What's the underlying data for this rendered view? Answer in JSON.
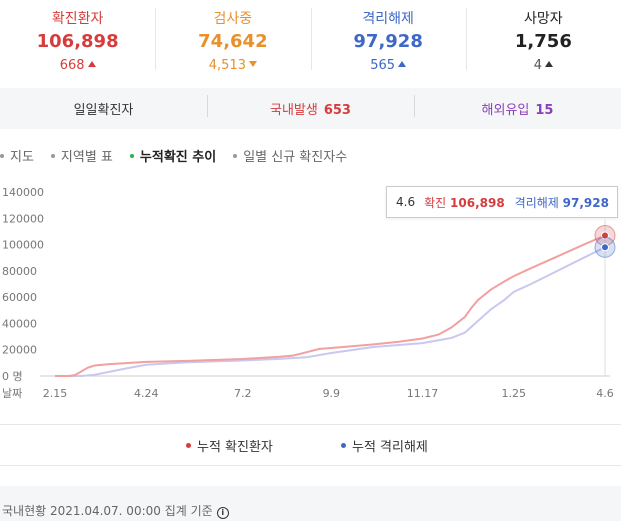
{
  "stats": [
    {
      "label": "확진환자",
      "value": "106,898",
      "change": "668",
      "direction": "up",
      "label_color": "#d73c3c",
      "value_color": "#d73c3c",
      "change_color": "#d73c3c"
    },
    {
      "label": "검사중",
      "value": "74,642",
      "change": "4,513",
      "direction": "down",
      "label_color": "#e8902a",
      "value_color": "#e8902a",
      "change_color": "#e8902a"
    },
    {
      "label": "격리해제",
      "value": "97,928",
      "change": "565",
      "direction": "up",
      "label_color": "#3e67c8",
      "value_color": "#3e67c8",
      "change_color": "#3e67c8"
    },
    {
      "label": "사망자",
      "value": "1,756",
      "change": "4",
      "direction": "up",
      "label_color": "#222222",
      "value_color": "#222222",
      "change_color": "#555555"
    }
  ],
  "daily": {
    "total_label": "일일확진자",
    "domestic_label": "국내발생",
    "domestic_value": "653",
    "overseas_label": "해외유입",
    "overseas_value": "15",
    "domestic_color": "#d73c3c",
    "overseas_color": "#8a3fb8"
  },
  "tabs": [
    "지도",
    "지역별 표",
    "누적확진 추이",
    "일별 신규 확진자수"
  ],
  "active_tab": 2,
  "tooltip": {
    "date": "4.6",
    "confirmed_label": "확진",
    "confirmed_value": "106,898",
    "released_label": "격리해제",
    "released_value": "97,928"
  },
  "legend": {
    "confirmed": "누적 확진환자",
    "released": "누적 격리해제"
  },
  "footer": {
    "text": "국내현황 2021.04.07. 00:00 집계 기준",
    "info_glyph": "i"
  },
  "chart_data": {
    "type": "line",
    "ylim": [
      0,
      140000
    ],
    "y_ticks": [
      {
        "value": 0,
        "label": "0 명"
      },
      {
        "value": 20000,
        "label": "20000"
      },
      {
        "value": 40000,
        "label": "40000"
      },
      {
        "value": 60000,
        "label": "60000"
      },
      {
        "value": 80000,
        "label": "80000"
      },
      {
        "value": 100000,
        "label": "100000"
      },
      {
        "value": 120000,
        "label": "120000"
      },
      {
        "value": 140000,
        "label": "140000"
      }
    ],
    "x_axis_label": "날짜",
    "x_ticks": [
      {
        "day": 0,
        "label": "2.15"
      },
      {
        "day": 69,
        "label": "4.24"
      },
      {
        "day": 142,
        "label": "7.2"
      },
      {
        "day": 209,
        "label": "9.9"
      },
      {
        "day": 278,
        "label": "11.17"
      },
      {
        "day": 347,
        "label": "1.25"
      },
      {
        "day": 416,
        "label": "4.6"
      }
    ],
    "xlim": [
      0,
      416
    ],
    "series": [
      {
        "name": "누적 확진환자",
        "color": "#f2a0a0",
        "marker_color": "#d73c3c",
        "points": [
          [
            0,
            28
          ],
          [
            10,
            30
          ],
          [
            15,
            700
          ],
          [
            20,
            3500
          ],
          [
            25,
            6500
          ],
          [
            30,
            8000
          ],
          [
            40,
            9000
          ],
          [
            55,
            9900
          ],
          [
            69,
            10700
          ],
          [
            100,
            11500
          ],
          [
            142,
            12900
          ],
          [
            170,
            14600
          ],
          [
            180,
            15500
          ],
          [
            190,
            18000
          ],
          [
            200,
            20600
          ],
          [
            209,
            21300
          ],
          [
            240,
            24000
          ],
          [
            260,
            26000
          ],
          [
            278,
            28500
          ],
          [
            290,
            31500
          ],
          [
            300,
            37000
          ],
          [
            310,
            45000
          ],
          [
            315,
            52000
          ],
          [
            320,
            58000
          ],
          [
            330,
            66000
          ],
          [
            340,
            72000
          ],
          [
            347,
            76000
          ],
          [
            360,
            82000
          ],
          [
            380,
            91000
          ],
          [
            400,
            100000
          ],
          [
            416,
            106898
          ]
        ]
      },
      {
        "name": "누적 격리해제",
        "color": "#c8c8f0",
        "marker_color": "#3e67c8",
        "points": [
          [
            0,
            0
          ],
          [
            20,
            0
          ],
          [
            30,
            1000
          ],
          [
            40,
            3000
          ],
          [
            55,
            6000
          ],
          [
            69,
            8500
          ],
          [
            100,
            10500
          ],
          [
            142,
            11800
          ],
          [
            170,
            13000
          ],
          [
            190,
            14200
          ],
          [
            209,
            17500
          ],
          [
            240,
            22000
          ],
          [
            278,
            25000
          ],
          [
            300,
            29000
          ],
          [
            310,
            33000
          ],
          [
            320,
            42000
          ],
          [
            330,
            51000
          ],
          [
            340,
            58000
          ],
          [
            347,
            64000
          ],
          [
            360,
            70000
          ],
          [
            380,
            80000
          ],
          [
            400,
            90000
          ],
          [
            416,
            97928
          ]
        ]
      }
    ]
  }
}
